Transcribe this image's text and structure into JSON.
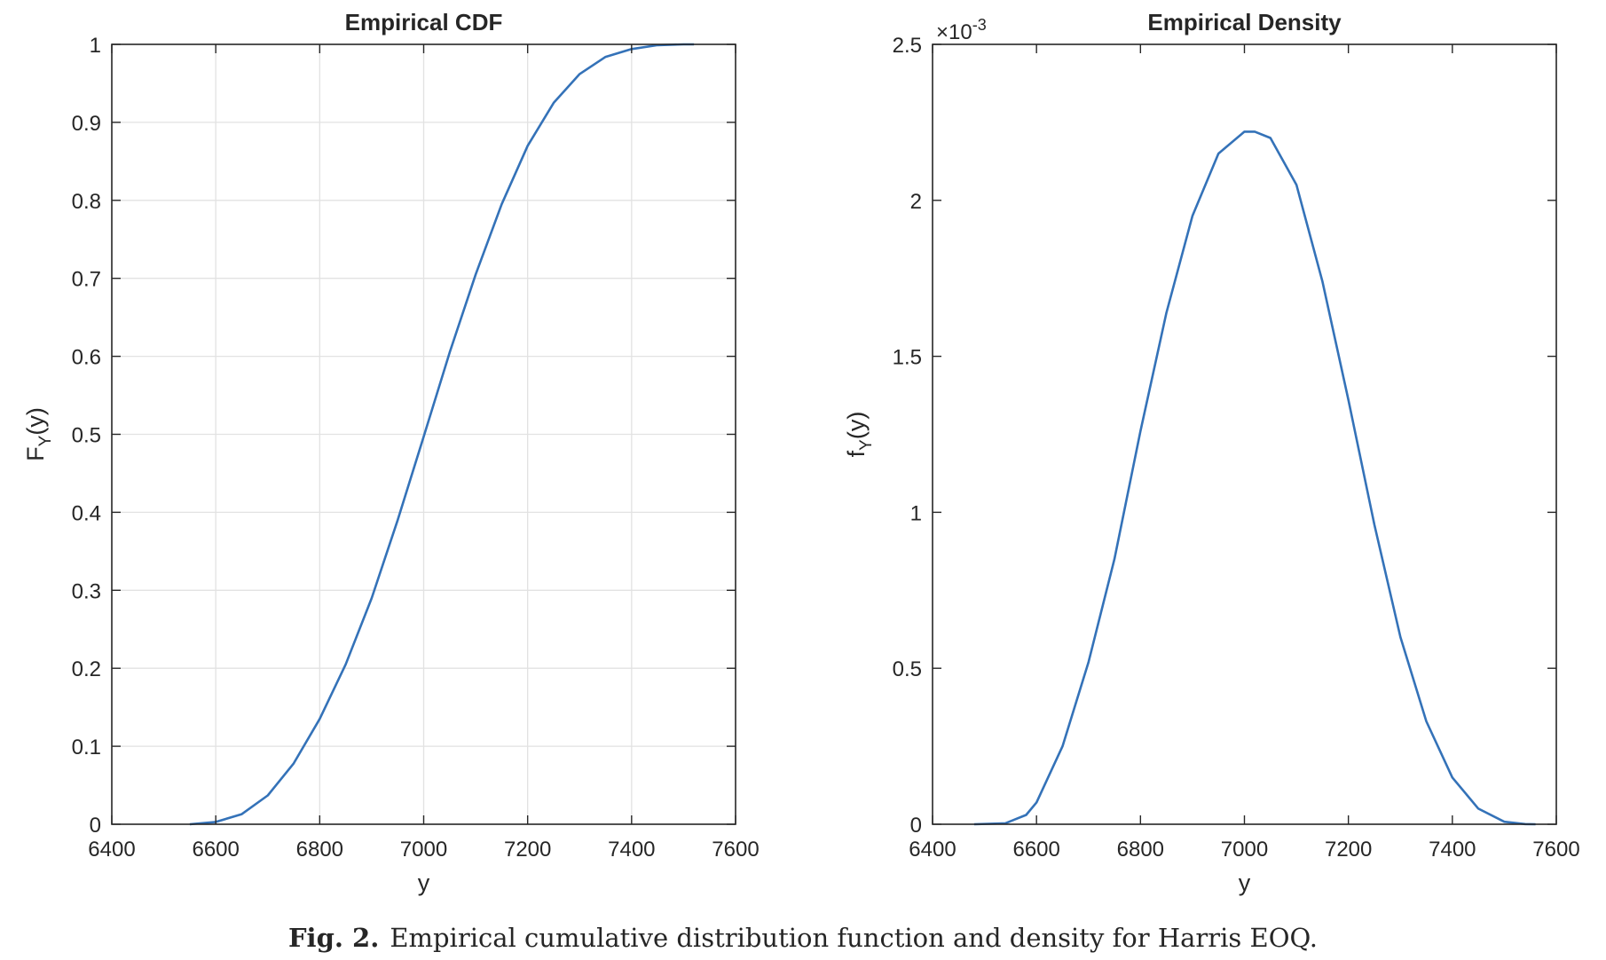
{
  "caption": {
    "label": "Fig. 2.",
    "text": "Empirical cumulative distribution function and density for Harris EOQ."
  },
  "colors": {
    "series": "#3472b8",
    "grid": "#e2e2e2",
    "axis": "#262626"
  },
  "chart_data": [
    {
      "type": "line",
      "title": "Empirical CDF",
      "xlabel": "y",
      "ylabel": "F",
      "ylabel_subscript": "Y",
      "ylabel_suffix": "(y)",
      "xlim": [
        6400,
        7600
      ],
      "ylim": [
        0,
        1
      ],
      "xticks": [
        6400,
        6600,
        6800,
        7000,
        7200,
        7400,
        7600
      ],
      "yticks": [
        0,
        0.1,
        0.2,
        0.3,
        0.4,
        0.5,
        0.6,
        0.7,
        0.8,
        0.9,
        1
      ],
      "ytick_labels": [
        "0",
        "0.1",
        "0.2",
        "0.3",
        "0.4",
        "0.5",
        "0.6",
        "0.7",
        "0.8",
        "0.9",
        "1"
      ],
      "grid": true,
      "series": [
        {
          "x": [
            6550,
            6600,
            6650,
            6700,
            6750,
            6800,
            6850,
            6900,
            6950,
            7000,
            7050,
            7100,
            7150,
            7200,
            7250,
            7300,
            7350,
            7400,
            7450,
            7500,
            7520
          ],
          "y": [
            0.0,
            0.003,
            0.013,
            0.037,
            0.078,
            0.135,
            0.205,
            0.29,
            0.39,
            0.497,
            0.605,
            0.705,
            0.795,
            0.87,
            0.925,
            0.962,
            0.984,
            0.994,
            0.999,
            1.0,
            1.0
          ]
        }
      ]
    },
    {
      "type": "line",
      "title": "Empirical Density",
      "xlabel": "y",
      "ylabel": "f",
      "ylabel_subscript": "Y",
      "ylabel_suffix": "(y)",
      "y_multiplier": "×10",
      "y_multiplier_exponent": "-3",
      "xlim": [
        6400,
        7600
      ],
      "ylim": [
        0,
        0.0025
      ],
      "xticks": [
        6400,
        6600,
        6800,
        7000,
        7200,
        7400,
        7600
      ],
      "yticks": [
        0,
        0.0005,
        0.001,
        0.0015,
        0.002,
        0.0025
      ],
      "ytick_labels": [
        "0",
        "0.5",
        "1",
        "1.5",
        "2",
        "2.5"
      ],
      "grid": false,
      "series": [
        {
          "x": [
            6480,
            6540,
            6580,
            6600,
            6650,
            6700,
            6750,
            6800,
            6850,
            6900,
            6950,
            7000,
            7020,
            7050,
            7100,
            7150,
            7200,
            7250,
            7300,
            7350,
            7400,
            7450,
            7500,
            7540,
            7560
          ],
          "y": [
            0.0,
            3e-06,
            3e-05,
            7e-05,
            0.00025,
            0.00052,
            0.00085,
            0.00126,
            0.00164,
            0.00195,
            0.00215,
            0.00222,
            0.00222,
            0.0022,
            0.00205,
            0.00174,
            0.00136,
            0.00096,
            0.0006,
            0.00033,
            0.00015,
            5e-05,
            8e-06,
            5e-07,
            0.0
          ]
        }
      ]
    }
  ]
}
